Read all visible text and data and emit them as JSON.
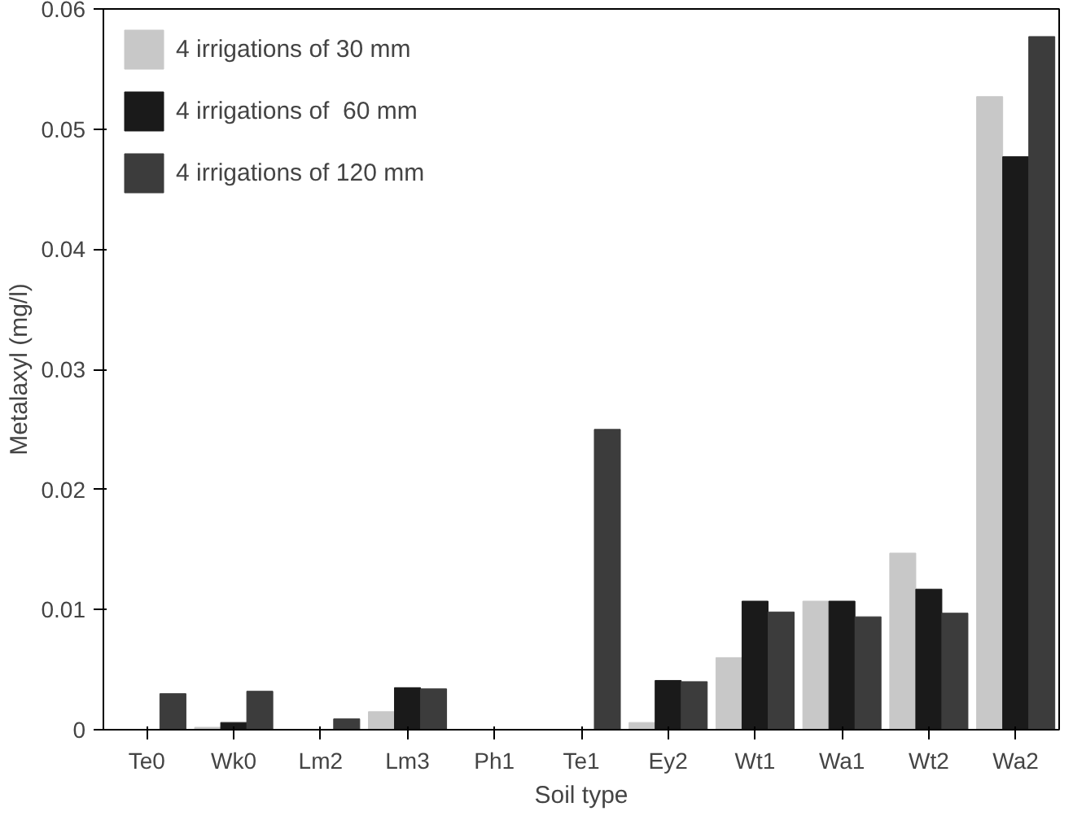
{
  "chart_data": {
    "type": "bar",
    "xlabel": "Soil type",
    "ylabel": "Metalaxyl (mg/l)",
    "categories": [
      "Te0",
      "Wk0",
      "Lm2",
      "Lm3",
      "Ph1",
      "Te1",
      "Ey2",
      "Wt1",
      "Wa1",
      "Wt2",
      "Wa2"
    ],
    "series": [
      {
        "name": "4 irrigations of 30 mm",
        "color": "#c8c8c8",
        "values": [
          0,
          0.0002,
          0,
          0.0015,
          0,
          0,
          0.0006,
          0.006,
          0.0107,
          0.0147,
          0.0527
        ]
      },
      {
        "name": "4 irrigations of  60 mm",
        "color": "#1a1a1a",
        "values": [
          0,
          0.0006,
          0,
          0.0035,
          0,
          0,
          0.0041,
          0.0107,
          0.0107,
          0.0117,
          0.0477
        ]
      },
      {
        "name": "4 irrigations of 120 mm",
        "color": "#3c3c3c",
        "values": [
          0.003,
          0.0032,
          0.0009,
          0.0034,
          0,
          0.025,
          0.004,
          0.0098,
          0.0094,
          0.0097,
          0.0577
        ]
      }
    ],
    "ylim": [
      0,
      0.06
    ],
    "yticks": [
      0,
      0.01,
      0.02,
      0.03,
      0.04,
      0.05,
      0.06
    ],
    "legend": "top left",
    "grid": false
  }
}
